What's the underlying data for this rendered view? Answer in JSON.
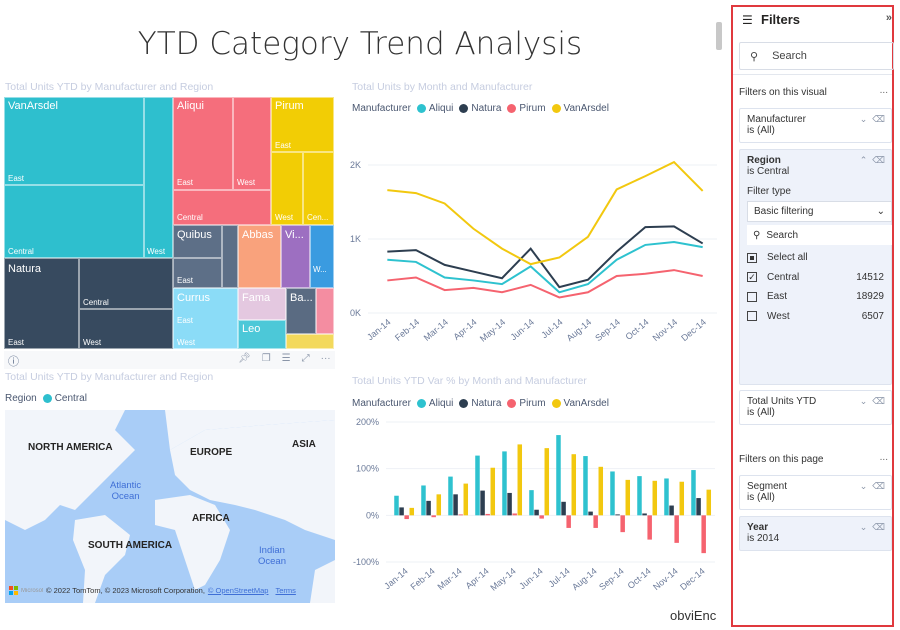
{
  "page": {
    "title": "YTD Category Trend Analysis",
    "footer_text": "obviEnc"
  },
  "treemap": {
    "title": "Total Units YTD by Manufacturer and Region",
    "labels": {
      "vanarsdel": "VanArsdel",
      "van_east": "East",
      "van_central": "Central",
      "van_west": "West",
      "aliqui": "Aliqui",
      "ali_east": "East",
      "ali_west": "West",
      "ali_central": "Central",
      "pirum": "Pirum",
      "pir_east": "East",
      "pir_west": "West",
      "pir_cen": "Cen...",
      "natura": "Natura",
      "nat_east": "East",
      "nat_central": "Central",
      "nat_west": "West",
      "quibus": "Quibus",
      "qui_east": "East",
      "abbas": "Abbas",
      "vi": "Vi...",
      "w": "W...",
      "currus": "Currus",
      "cur_east": "East",
      "cur_west": "West",
      "fama": "Fama",
      "leo": "Leo",
      "ba": "Ba..."
    },
    "colors": {
      "VanArsdel": "#2ebfce",
      "Aliqui": "#f56e7c",
      "Pirum": "#f2cd05",
      "Natura": "#374a5f",
      "Quibus": "#5d6f87",
      "Abbas": "#f9a27c",
      "Vi": "#9d6fc1",
      "W": "#3a9be0",
      "Currus": "#8bdcf7",
      "Fama": "#e4c8e0",
      "Leo": "#4cc8d8",
      "Ba": "#5a6b82",
      "Pink": "#f48da1",
      "Yellow": "#f3d95c"
    }
  },
  "visual_toolbar": [
    "info-icon",
    "pin-icon",
    "copy-icon",
    "filter-icon",
    "focus-mode-icon",
    "more-options-icon"
  ],
  "map": {
    "title": "Total Units YTD by Manufacturer and Region",
    "legend_title": "Region",
    "legend_item": "Central",
    "legend_color": "#2ebfce",
    "labels": {
      "na": "NORTH AMERICA",
      "eu": "EUROPE",
      "asia": "ASIA",
      "af": "AFRICA",
      "sa": "SOUTH AMERICA",
      "atl1": "Atlantic",
      "atl2": "Ocean",
      "ind1": "Indian",
      "ind2": "Ocean"
    },
    "attribution": "© 2022 TomTom, © 2023 Microsoft Corporation,",
    "osm_link": "© OpenStreetMap",
    "terms_link": "Terms",
    "bing": "Microsoft Bing"
  },
  "chart_data": [
    {
      "type": "line",
      "title": "Total Units by Month and Manufacturer",
      "legend_title": "Manufacturer",
      "legend": "top-left",
      "grid": true,
      "categories": [
        "Jan-14",
        "Feb-14",
        "Mar-14",
        "Apr-14",
        "May-14",
        "Jun-14",
        "Jul-14",
        "Aug-14",
        "Sep-14",
        "Oct-14",
        "Nov-14",
        "Dec-14"
      ],
      "yticks": [
        "0K",
        "1K",
        "2K"
      ],
      "ylim": [
        0,
        2000
      ],
      "series": [
        {
          "name": "Aliqui",
          "color": "#2ec2cf",
          "values": [
            720,
            690,
            480,
            440,
            390,
            630,
            280,
            390,
            720,
            920,
            960,
            890
          ]
        },
        {
          "name": "Natura",
          "color": "#2d3e50",
          "values": [
            830,
            850,
            650,
            560,
            470,
            870,
            350,
            450,
            830,
            1160,
            1170,
            940
          ]
        },
        {
          "name": "Pirum",
          "color": "#f5636f",
          "values": [
            440,
            480,
            310,
            340,
            280,
            380,
            210,
            280,
            500,
            530,
            580,
            500
          ]
        },
        {
          "name": "VanArsdel",
          "color": "#f2c80f",
          "values": [
            1660,
            1620,
            1480,
            1140,
            870,
            660,
            750,
            1030,
            1670,
            1850,
            2040,
            1650
          ]
        }
      ]
    },
    {
      "type": "bar",
      "title": "Total Units YTD Var % by Month and Manufacturer",
      "legend_title": "Manufacturer",
      "legend": "top-left",
      "grid": true,
      "categories": [
        "Jan-14",
        "Feb-14",
        "Mar-14",
        "Apr-14",
        "May-14",
        "Jun-14",
        "Jul-14",
        "Aug-14",
        "Sep-14",
        "Oct-14",
        "Nov-14",
        "Dec-14"
      ],
      "yticks": [
        "-100%",
        "0%",
        "100%",
        "200%"
      ],
      "ylim": [
        -100,
        200
      ],
      "series": [
        {
          "name": "Aliqui",
          "color": "#2ec2cf",
          "values": [
            42,
            64,
            83,
            128,
            137,
            54,
            172,
            127,
            94,
            84,
            79,
            97
          ]
        },
        {
          "name": "Natura",
          "color": "#2d3e50",
          "values": [
            17,
            31,
            45,
            53,
            48,
            12,
            29,
            8,
            2,
            4,
            21,
            37
          ]
        },
        {
          "name": "Pirum",
          "color": "#f5636f",
          "values": [
            -8,
            -4,
            2,
            3,
            4,
            -7,
            -27,
            -27,
            -36,
            -52,
            -59,
            -81
          ]
        },
        {
          "name": "VanArsdel",
          "color": "#f2c80f",
          "values": [
            16,
            45,
            68,
            102,
            152,
            144,
            131,
            104,
            76,
            74,
            72,
            55
          ]
        }
      ]
    }
  ],
  "filters": {
    "title": "Filters",
    "search_placeholder": "Search",
    "visual_section": "Filters on this visual",
    "page_section": "Filters on this page",
    "more": "...",
    "manufacturer": {
      "name": "Manufacturer",
      "state": "is (All)"
    },
    "region": {
      "name": "Region",
      "state": "is Central",
      "filter_type_label": "Filter type",
      "filter_type": "Basic filtering",
      "search_placeholder": "Search",
      "select_all": "Select all",
      "items": [
        {
          "label": "Central",
          "count": "14512",
          "checked": true
        },
        {
          "label": "East",
          "count": "18929",
          "checked": false
        },
        {
          "label": "West",
          "count": "6507",
          "checked": false
        }
      ]
    },
    "total_units": {
      "name": "Total Units YTD",
      "state": "is (All)"
    },
    "segment": {
      "name": "Segment",
      "state": "is (All)"
    },
    "year": {
      "name": "Year",
      "state": "is 2014"
    },
    "border_color": "#e0393e"
  }
}
